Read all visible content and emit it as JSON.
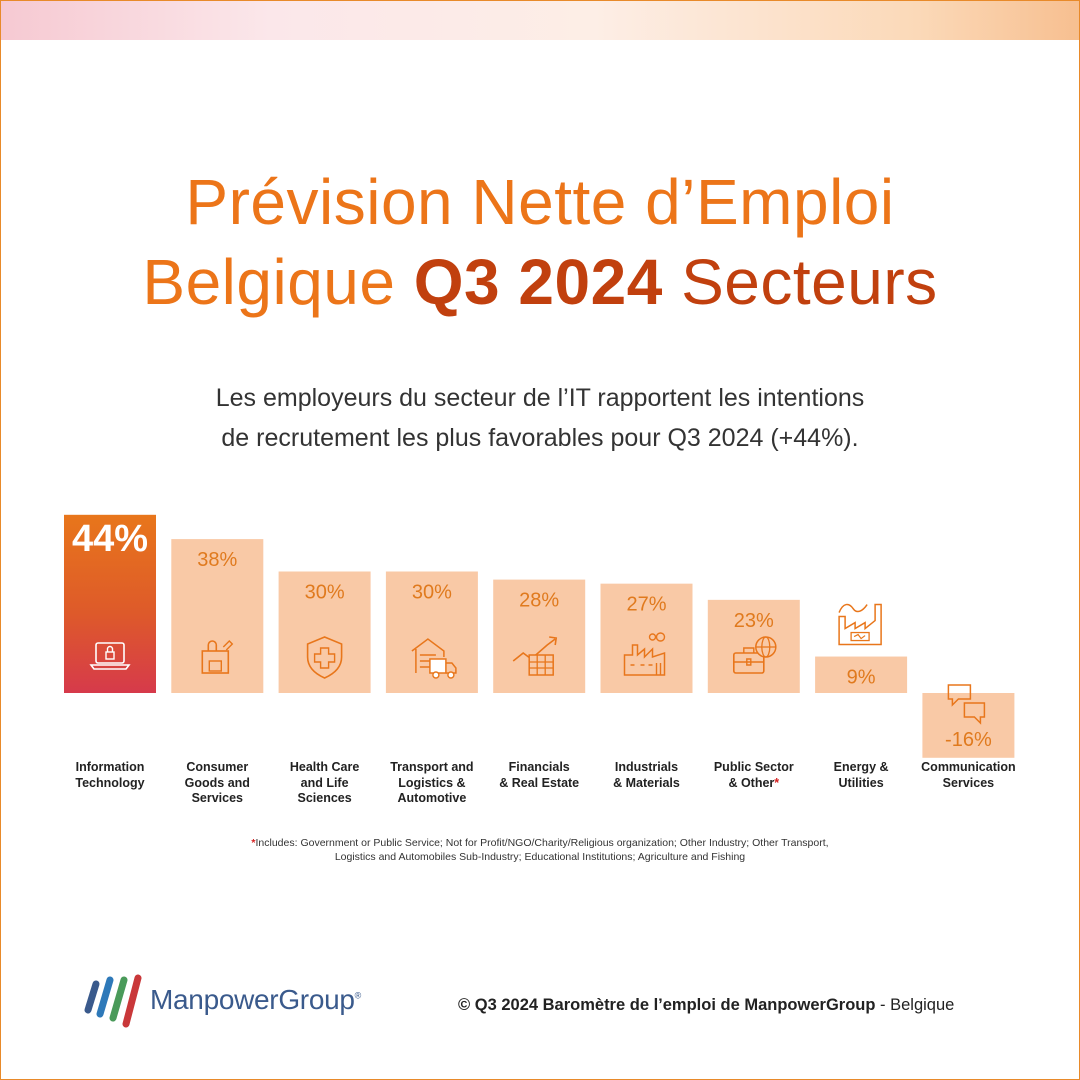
{
  "title": {
    "line1": "Prévision Nette d’Emploi",
    "line2_part1": "Belgique",
    "line2_highlight": "Q3 2024",
    "line2_part3": "Secteurs"
  },
  "subtitle": {
    "line1": "Les employeurs du secteur de l’IT rapportent les intentions",
    "line2": "de recrutement les plus favorables pour Q3 2024 (+44%)."
  },
  "chart_data": {
    "type": "bar",
    "categories": [
      "Information Technology",
      "Consumer Goods and Services",
      "Health Care and Life Sciences",
      "Transport and Logistics & Automotive",
      "Financials & Real Estate",
      "Industrials & Materials",
      "Public Sector & Other*",
      "Energy & Utilities",
      "Communication Services"
    ],
    "values": [
      44,
      38,
      30,
      30,
      28,
      27,
      23,
      9,
      -16
    ],
    "value_labels": [
      "44%",
      "38%",
      "30%",
      "30%",
      "28%",
      "27%",
      "23%",
      "9%",
      "-16%"
    ],
    "icons": [
      "laptop-lock-icon",
      "shopping-bag-icon",
      "shield-cross-icon",
      "warehouse-truck-icon",
      "growth-chart-icon",
      "factory-icon",
      "briefcase-globe-icon",
      "energy-plant-icon",
      "chat-bubbles-icon"
    ],
    "colors": {
      "highlight_top": "#e8761b",
      "highlight_bottom": "#d9374a",
      "bar": "#f9c9a6",
      "value_text": "#e07a1e",
      "icon": "#e8761b"
    }
  },
  "labels": [
    "Information\nTechnology",
    "Consumer\nGoods and\nServices",
    "Health Care\nand Life\nSciences",
    "Transport and\nLogistics &\nAutomotive",
    "Financials\n& Real Estate",
    "Industrials\n& Materials",
    "Public Sector\n& Other",
    "Energy &\nUtilities",
    "Communication\nServices"
  ],
  "footnote": {
    "star": "*",
    "text": "Includes: Government or Public Service; Not for Profit/NGO/Charity/Religious organization; Other Industry; Other Transport, Logistics and Automobiles Sub-Industry; Educational Institutions; Agriculture and Fishing"
  },
  "logo": {
    "text": "ManpowerGroup",
    "mark": "®"
  },
  "copyright": {
    "bold": "© Q3 2024 Baromètre de l’emploi de ManpowerGroup",
    "rest": " - Belgique"
  }
}
